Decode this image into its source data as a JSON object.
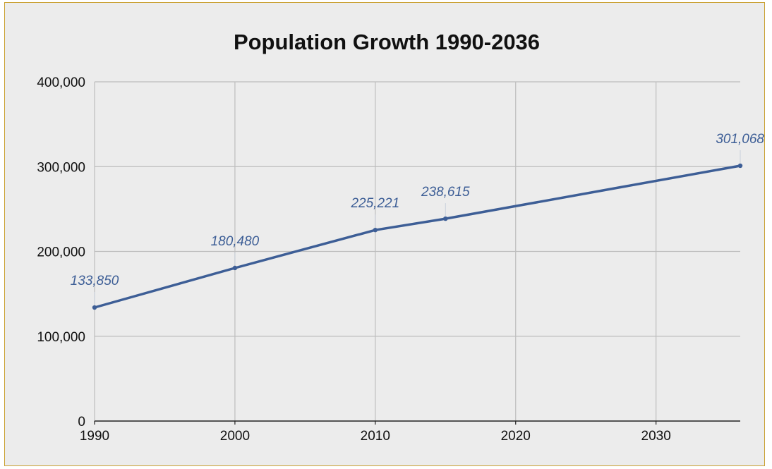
{
  "chart_data": {
    "type": "line",
    "title": "Population Growth 1990-2036",
    "xlabel": "",
    "ylabel": "",
    "xlim": [
      1990,
      2036
    ],
    "ylim": [
      0,
      400000
    ],
    "x_ticks": [
      1990,
      2000,
      2010,
      2020,
      2030
    ],
    "x_tick_labels": [
      "1990",
      "2000",
      "2010",
      "2020",
      "2030"
    ],
    "y_ticks": [
      0,
      100000,
      200000,
      300000,
      400000
    ],
    "y_tick_labels": [
      "0",
      "100,000",
      "200,000",
      "300,000",
      "400,000"
    ],
    "grid": true,
    "legend": "none",
    "series": [
      {
        "color": "#3d5e96",
        "points": [
          {
            "x": 1990,
            "y": 133850,
            "label": "133,850"
          },
          {
            "x": 2000,
            "y": 180480,
            "label": "180,480"
          },
          {
            "x": 2010,
            "y": 225221,
            "label": "225,221"
          },
          {
            "x": 2015,
            "y": 238615,
            "label": "238,615"
          },
          {
            "x": 2036,
            "y": 301068,
            "label": "301,068"
          }
        ]
      }
    ]
  },
  "colors": {
    "background": "#ececec",
    "border": "#c9a030",
    "grid": "#bdbdbd",
    "axis": "#222222",
    "line": "#3d5e96"
  }
}
